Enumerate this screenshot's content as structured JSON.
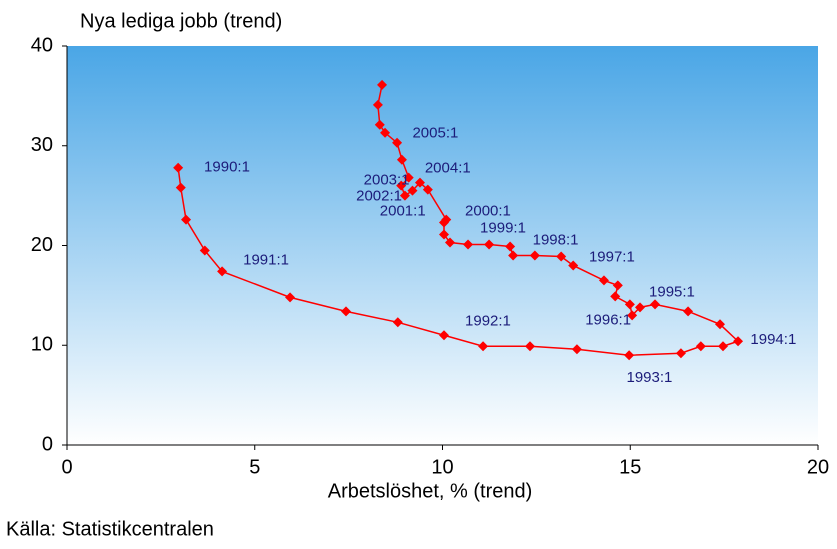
{
  "chart_data": {
    "type": "line",
    "title": "Nya lediga jobb (trend)",
    "x_label": "Arbetslöshet, % (trend)",
    "source": "Källa: Statistikcentralen",
    "color": "#ff0000",
    "x": [
      2.96,
      3.03,
      3.17,
      3.67,
      4.13,
      5.94,
      7.43,
      8.81,
      10.04,
      11.08,
      12.33,
      13.58,
      14.97,
      16.35,
      16.88,
      17.47,
      17.87,
      17.39,
      16.54,
      15.66,
      15.26,
      15.05,
      14.99,
      14.6,
      14.67,
      14.3,
      13.48,
      13.16,
      12.46,
      11.88,
      11.8,
      11.24,
      10.68,
      10.2,
      10.04,
      10.04,
      10.1,
      9.61,
      9.4,
      9.2,
      9.0,
      8.9,
      9.1,
      8.92,
      8.79,
      8.47,
      8.33,
      8.28,
      8.39
    ],
    "values": [
      27.8,
      25.8,
      22.6,
      19.5,
      17.4,
      14.8,
      13.4,
      12.3,
      11.0,
      9.9,
      9.9,
      9.6,
      9.0,
      9.2,
      9.9,
      9.9,
      10.4,
      12.1,
      13.4,
      14.1,
      13.8,
      13.0,
      14.1,
      14.9,
      16.0,
      16.5,
      18.0,
      18.9,
      19.0,
      19.0,
      19.9,
      20.1,
      20.1,
      20.3,
      21.1,
      22.3,
      22.6,
      25.6,
      26.3,
      25.5,
      25.0,
      26.0,
      26.8,
      28.6,
      30.3,
      31.3,
      32.1,
      34.1,
      36.1
    ],
    "xlim": [
      0,
      20
    ],
    "ylim": [
      0,
      40
    ],
    "xticks": [
      0,
      5,
      10,
      15,
      20
    ],
    "yticks": [
      0,
      10,
      20,
      30,
      40
    ],
    "annotations": [
      {
        "text": "1990:1",
        "x": 3.65,
        "y": 27.8
      },
      {
        "text": "1991:1",
        "x": 4.69,
        "y": 18.5
      },
      {
        "text": "1992:1",
        "x": 10.6,
        "y": 12.4
      },
      {
        "text": "1993:1",
        "x": 14.9,
        "y": 6.7
      },
      {
        "text": "1994:1",
        "x": 18.2,
        "y": 10.5
      },
      {
        "text": "1995:1",
        "x": 15.5,
        "y": 15.3
      },
      {
        "text": "1996:1",
        "x": 13.8,
        "y": 12.5
      },
      {
        "text": "1997:1",
        "x": 13.9,
        "y": 18.8
      },
      {
        "text": "1998:1",
        "x": 12.4,
        "y": 20.5
      },
      {
        "text": "1999:1",
        "x": 11.0,
        "y": 21.7
      },
      {
        "text": "2000:1",
        "x": 10.6,
        "y": 23.4
      },
      {
        "text": "2001:1",
        "x": 8.33,
        "y": 23.4
      },
      {
        "text": "2002:1",
        "x": 7.7,
        "y": 24.9
      },
      {
        "text": "2003:1",
        "x": 7.9,
        "y": 26.5
      },
      {
        "text": "2004:1",
        "x": 9.53,
        "y": 27.7
      },
      {
        "text": "2005:1",
        "x": 9.2,
        "y": 31.2
      }
    ]
  }
}
